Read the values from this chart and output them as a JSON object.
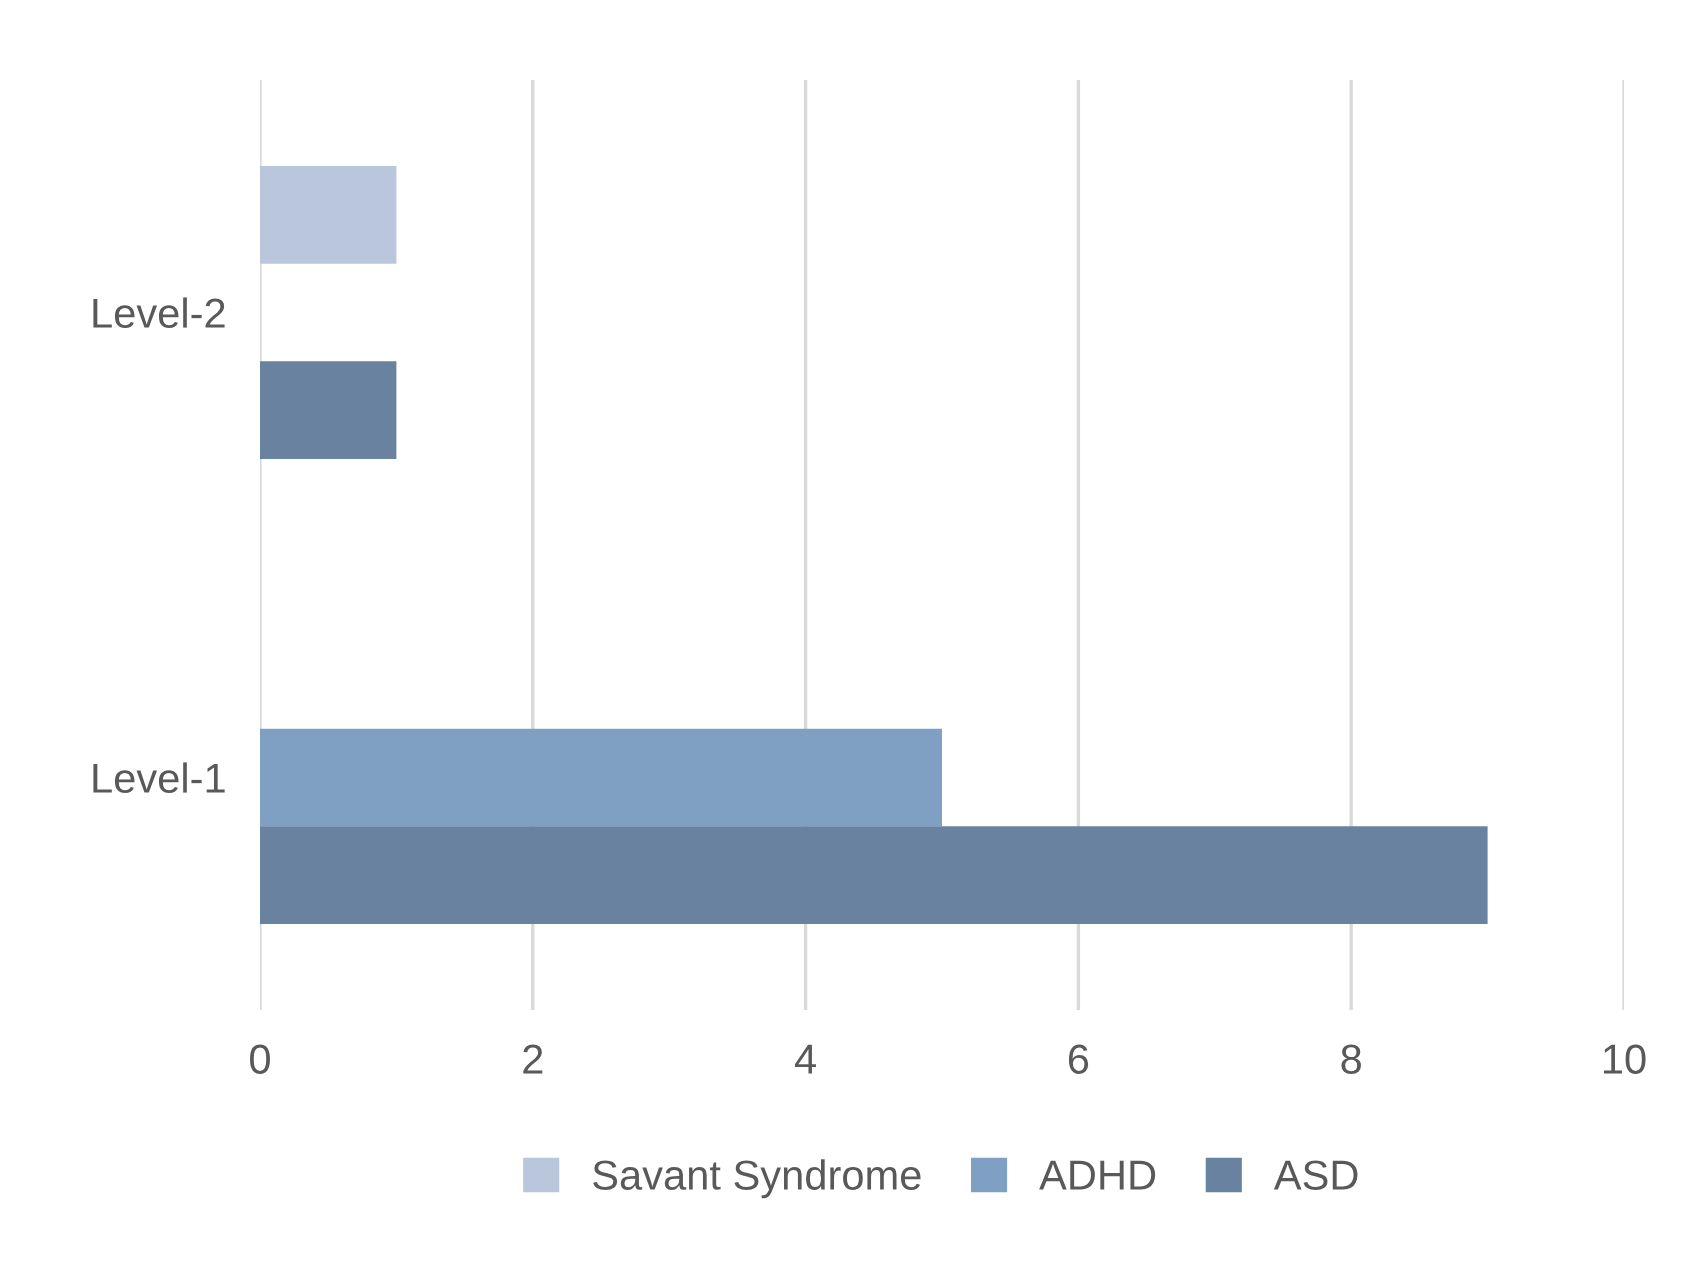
{
  "chart_data": {
    "type": "bar",
    "orientation": "horizontal",
    "categories": [
      "Level-2",
      "Level-1"
    ],
    "series": [
      {
        "name": "Savant Syndrome",
        "color": "#b9c6dc",
        "values": [
          1,
          null
        ]
      },
      {
        "name": "ADHD",
        "color": "#7f9fc3",
        "values": [
          null,
          5
        ]
      },
      {
        "name": "ASD",
        "color": "#68829f",
        "values": [
          1,
          9
        ]
      }
    ],
    "xlim": [
      0,
      10
    ],
    "xticks": [
      0,
      2,
      4,
      6,
      8,
      10
    ],
    "grid": "x",
    "legend": "bottom"
  }
}
